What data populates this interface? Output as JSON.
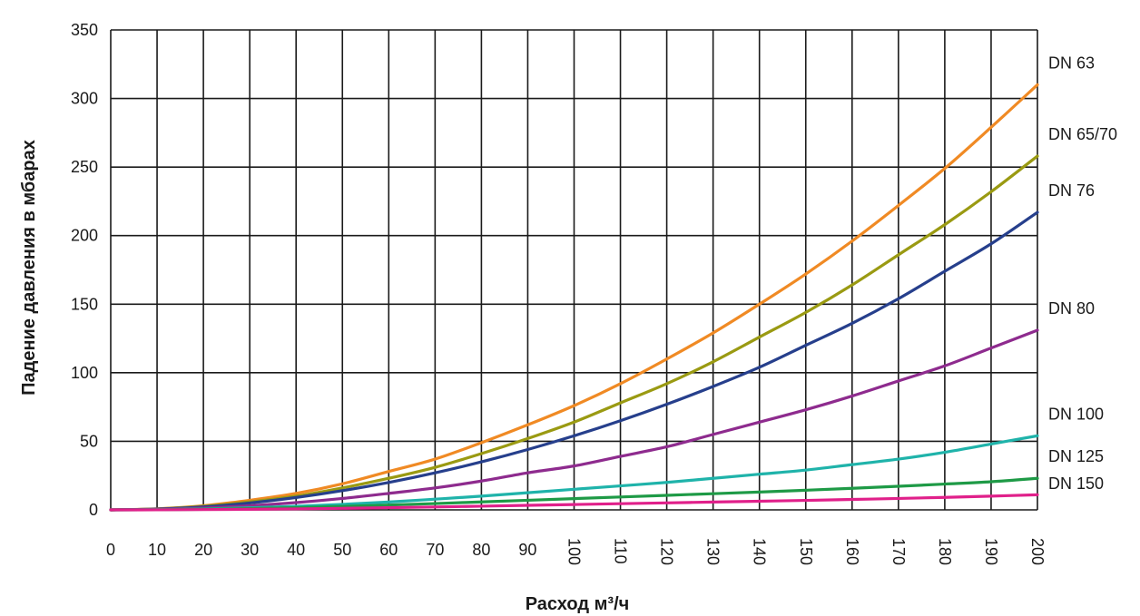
{
  "chart_data": {
    "type": "line",
    "xlabel": "Расход м³/ч",
    "ylabel": "Падение давления в мбарах",
    "xlim": [
      0,
      200
    ],
    "ylim": [
      0,
      350
    ],
    "grid": true,
    "x_ticks": [
      0,
      10,
      20,
      30,
      40,
      50,
      60,
      70,
      80,
      90,
      100,
      110,
      120,
      130,
      140,
      150,
      160,
      170,
      180,
      190,
      200
    ],
    "y_ticks": [
      0,
      50,
      100,
      150,
      200,
      250,
      300,
      350
    ],
    "series": [
      {
        "name": "DN 63",
        "color": "#f08a24",
        "x": [
          0,
          10,
          20,
          30,
          40,
          50,
          60,
          70,
          80,
          90,
          100,
          110,
          120,
          130,
          140,
          150,
          160,
          170,
          180,
          190,
          200
        ],
        "y": [
          0,
          0.8,
          3,
          7,
          12,
          19,
          28,
          37,
          49,
          62,
          76,
          92,
          110,
          129,
          150,
          172,
          196,
          222,
          249,
          279,
          310
        ]
      },
      {
        "name": "DN 65/70",
        "color": "#9a9a12",
        "x": [
          0,
          10,
          20,
          30,
          40,
          50,
          60,
          70,
          80,
          90,
          100,
          110,
          120,
          130,
          140,
          150,
          160,
          170,
          180,
          190,
          200
        ],
        "y": [
          0,
          0.7,
          2.6,
          5.8,
          10,
          16,
          23,
          31,
          41,
          52,
          64,
          78,
          92,
          108,
          126,
          144,
          164,
          186,
          208,
          232,
          258
        ]
      },
      {
        "name": "DN 76",
        "color": "#263f8c",
        "x": [
          0,
          10,
          20,
          30,
          40,
          50,
          60,
          70,
          80,
          90,
          100,
          110,
          120,
          130,
          140,
          150,
          160,
          170,
          180,
          190,
          200
        ],
        "y": [
          0,
          0.6,
          2.2,
          5,
          9,
          14,
          20,
          27,
          35,
          44,
          54,
          65,
          77,
          90,
          104,
          120,
          136,
          154,
          174,
          194,
          217
        ]
      },
      {
        "name": "DN 80",
        "color": "#8e2b8e",
        "x": [
          0,
          10,
          20,
          30,
          40,
          50,
          60,
          70,
          80,
          90,
          100,
          110,
          120,
          130,
          140,
          150,
          160,
          170,
          180,
          190,
          200
        ],
        "y": [
          0,
          0.35,
          1.3,
          3,
          5.3,
          8.3,
          12,
          16,
          21,
          27,
          32,
          39,
          46,
          55,
          64,
          73,
          83,
          94,
          105,
          118,
          131
        ]
      },
      {
        "name": "DN 100",
        "color": "#1fb3aa",
        "x": [
          0,
          10,
          20,
          30,
          40,
          50,
          60,
          70,
          80,
          90,
          100,
          110,
          120,
          130,
          140,
          150,
          160,
          170,
          180,
          190,
          200
        ],
        "y": [
          0,
          0.2,
          0.7,
          1.5,
          2.6,
          4,
          5.7,
          7.8,
          10,
          12.5,
          15,
          17.5,
          20,
          23,
          26,
          29,
          33,
          37,
          42,
          48,
          54
        ]
      },
      {
        "name": "DN 125",
        "color": "#1e9a46",
        "x": [
          0,
          10,
          20,
          30,
          40,
          50,
          60,
          70,
          80,
          90,
          100,
          110,
          120,
          130,
          140,
          150,
          160,
          170,
          180,
          190,
          200
        ],
        "y": [
          0,
          0.1,
          0.4,
          0.9,
          1.6,
          2.5,
          3.5,
          4.6,
          5.8,
          7,
          8.2,
          9.4,
          10.6,
          11.8,
          13,
          14.3,
          15.7,
          17.2,
          18.8,
          20.5,
          23
        ]
      },
      {
        "name": "DN 150",
        "color": "#e0208a",
        "x": [
          0,
          10,
          20,
          30,
          40,
          50,
          60,
          70,
          80,
          90,
          100,
          110,
          120,
          130,
          140,
          150,
          160,
          170,
          180,
          190,
          200
        ],
        "y": [
          0,
          0.05,
          0.2,
          0.4,
          0.7,
          1.1,
          1.6,
          2.1,
          2.7,
          3.3,
          3.9,
          4.5,
          5.1,
          5.7,
          6.3,
          6.9,
          7.6,
          8.3,
          9.1,
          10,
          11
        ]
      }
    ]
  }
}
